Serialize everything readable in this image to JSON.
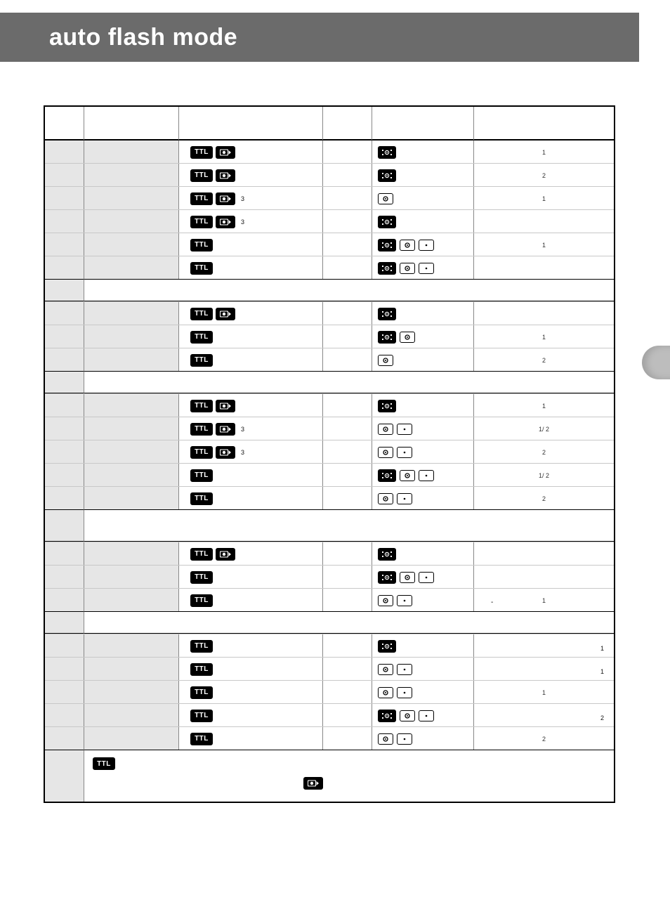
{
  "colors": {
    "header_bg": "#6b6b6b",
    "header_text": "#ffffff",
    "page_bg": "#ffffff",
    "table_border": "#000000",
    "row_border": "#c8c8c8",
    "shade_bg": "#e6e6e6",
    "text": "#111111",
    "side_tab": "#bdbdbd"
  },
  "page": {
    "title": "auto flash mode"
  },
  "icons": {
    "ttl_label": "TTL",
    "preflash_name": "monitor-preflash-icon",
    "matrix_name": "3d-matrix-metering-icon",
    "center_name": "center-weighted-metering-icon",
    "spot_name": "spot-metering-icon"
  },
  "table": {
    "headers": [
      "",
      "",
      "",
      "",
      "",
      ""
    ],
    "groups": [
      {
        "separator": null,
        "rows": [
          {
            "ttl": true,
            "preflash": true,
            "sup": "",
            "metering": [
              "matrix"
            ],
            "note": "1",
            "note_right": ""
          },
          {
            "ttl": true,
            "preflash": true,
            "sup": "",
            "metering": [
              "matrix"
            ],
            "note": "2",
            "note_right": ""
          },
          {
            "ttl": true,
            "preflash": true,
            "sup": "3",
            "metering": [
              "center"
            ],
            "note": "1",
            "note_right": ""
          },
          {
            "ttl": true,
            "preflash": true,
            "sup": "3",
            "metering": [
              "matrix"
            ],
            "note": "",
            "note_right": ""
          },
          {
            "ttl": true,
            "preflash": false,
            "sup": "",
            "metering": [
              "matrix",
              "center",
              "spot"
            ],
            "note": "1",
            "note_right": ""
          },
          {
            "ttl": true,
            "preflash": false,
            "sup": "",
            "metering": [
              "matrix",
              "center",
              "spot"
            ],
            "note": "",
            "note_right": ""
          }
        ]
      },
      {
        "separator": {
          "tall": false
        },
        "rows": [
          {
            "ttl": true,
            "preflash": true,
            "sup": "",
            "metering": [
              "matrix"
            ],
            "note": "",
            "note_right": ""
          },
          {
            "ttl": true,
            "preflash": false,
            "sup": "",
            "metering": [
              "matrix",
              "center"
            ],
            "note": "1",
            "note_right": ""
          },
          {
            "ttl": true,
            "preflash": false,
            "sup": "",
            "metering": [
              "center"
            ],
            "note": "2",
            "note_right": ""
          }
        ]
      },
      {
        "separator": {
          "tall": false
        },
        "rows": [
          {
            "ttl": true,
            "preflash": true,
            "sup": "",
            "metering": [
              "matrix"
            ],
            "note": "1",
            "note_right": ""
          },
          {
            "ttl": true,
            "preflash": true,
            "sup": "3",
            "metering": [
              "center",
              "spot"
            ],
            "note": "1/ 2",
            "note_right": ""
          },
          {
            "ttl": true,
            "preflash": true,
            "sup": "3",
            "metering": [
              "center",
              "spot"
            ],
            "note": "2",
            "note_right": ""
          },
          {
            "ttl": true,
            "preflash": false,
            "sup": "",
            "metering": [
              "matrix",
              "center",
              "spot"
            ],
            "note": "1/ 2",
            "note_right": ""
          },
          {
            "ttl": true,
            "preflash": false,
            "sup": "",
            "metering": [
              "center",
              "spot"
            ],
            "note": "2",
            "note_right": ""
          }
        ]
      },
      {
        "separator": {
          "tall": true
        },
        "rows": [
          {
            "ttl": true,
            "preflash": true,
            "sup": "",
            "metering": [
              "matrix"
            ],
            "note": "",
            "note_right": ""
          },
          {
            "ttl": true,
            "preflash": false,
            "sup": "",
            "metering": [
              "matrix",
              "center",
              "spot"
            ],
            "note": "",
            "note_right": ""
          },
          {
            "ttl": true,
            "preflash": false,
            "sup": "",
            "metering": [
              "center",
              "spot"
            ],
            "note": "1",
            "note_right": "",
            "left_mark": "-"
          }
        ]
      },
      {
        "separator": {
          "tall": false
        },
        "rows": [
          {
            "ttl": true,
            "preflash": false,
            "sup": "",
            "metering": [
              "matrix"
            ],
            "note": "",
            "note_right": "1"
          },
          {
            "ttl": true,
            "preflash": false,
            "sup": "",
            "metering": [
              "center",
              "spot"
            ],
            "note": "",
            "note_right": "1"
          },
          {
            "ttl": true,
            "preflash": false,
            "sup": "",
            "metering": [
              "center",
              "spot"
            ],
            "note": "1",
            "note_right": ""
          },
          {
            "ttl": true,
            "preflash": false,
            "sup": "",
            "metering": [
              "matrix",
              "center",
              "spot"
            ],
            "note": "",
            "note_right": "2"
          },
          {
            "ttl": true,
            "preflash": false,
            "sup": "",
            "metering": [
              "center",
              "spot"
            ],
            "note": "2",
            "note_right": ""
          }
        ]
      }
    ],
    "footer": {
      "line1_prefix": "",
      "line1_icon": "ttl",
      "line2_icon": "preflash"
    }
  }
}
